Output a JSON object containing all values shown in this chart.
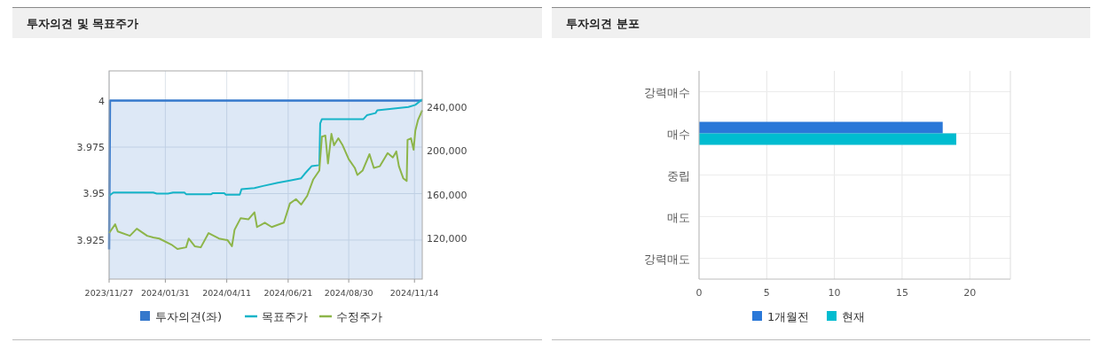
{
  "chart_data": [
    {
      "type": "line",
      "title": "투자의견 및 목표주가",
      "xlim": [
        "2023-11-27",
        "2024-11-23"
      ],
      "xticks": [
        {
          "value": "2023-11-27",
          "label": "2023/11/27"
        },
        {
          "value": "2024-01-31",
          "label": "2024/01/31"
        },
        {
          "value": "2024-04-11",
          "label": "2024/04/11"
        },
        {
          "value": "2024-06-21",
          "label": "2024/06/21"
        },
        {
          "value": "2024-08-30",
          "label": "2024/08/30"
        },
        {
          "value": "2024-11-14",
          "label": "2024/11/14"
        }
      ],
      "ylim": [
        3.904,
        4.016
      ],
      "yticks": [
        3.925,
        3.95,
        3.975,
        4
      ],
      "y2lim": [
        83000,
        273000
      ],
      "y2ticks": [
        {
          "value": 120000,
          "label": "120,000"
        },
        {
          "value": 160000,
          "label": "160,000"
        },
        {
          "value": 200000,
          "label": "200,000"
        },
        {
          "value": 240000,
          "label": "240,000"
        }
      ],
      "grid": true,
      "legend": "bottom",
      "series": [
        {
          "name": "투자의견(좌)",
          "type": "area",
          "color": "#3578cc",
          "x": [
            "2023-11-27",
            "2023-11-28",
            "2024-11-23"
          ],
          "values": [
            3.92,
            4,
            4
          ]
        },
        {
          "name": "목표주가",
          "type": "line",
          "axis": "y2",
          "color": "#17b4c8",
          "x": [
            "2023-11-27",
            "2023-12-02",
            "2024-01-17",
            "2024-01-21",
            "2024-02-03",
            "2024-02-09",
            "2024-02-22",
            "2024-02-24",
            "2024-03-24",
            "2024-03-26",
            "2024-04-08",
            "2024-04-10",
            "2024-04-26",
            "2024-04-28",
            "2024-05-13",
            "2024-05-23",
            "2024-06-09",
            "2024-06-23",
            "2024-07-06",
            "2024-07-10",
            "2024-07-18",
            "2024-07-27",
            "2024-07-28",
            "2024-07-30",
            "2024-09-16",
            "2024-09-20",
            "2024-09-30",
            "2024-10-02",
            "2024-11-07",
            "2024-11-15",
            "2024-11-23"
          ],
          "values": [
            159000,
            162000,
            162000,
            161000,
            161000,
            162000,
            162000,
            160500,
            160500,
            161500,
            161500,
            160000,
            160000,
            165000,
            166000,
            168000,
            171000,
            173000,
            175000,
            179000,
            186000,
            187000,
            225000,
            229000,
            229000,
            232500,
            234500,
            237000,
            240000,
            242000,
            247000
          ]
        },
        {
          "name": "수정주가",
          "type": "line",
          "axis": "y2",
          "color": "#8db54a",
          "x": [
            "2023-11-27",
            "2023-12-04",
            "2023-12-07",
            "2023-12-21",
            "2023-12-29",
            "2024-01-10",
            "2024-01-17",
            "2024-01-24",
            "2024-02-07",
            "2024-02-14",
            "2024-02-24",
            "2024-02-27",
            "2024-03-05",
            "2024-03-12",
            "2024-03-21",
            "2024-04-02",
            "2024-04-12",
            "2024-04-17",
            "2024-04-20",
            "2024-04-27",
            "2024-05-06",
            "2024-05-13",
            "2024-05-16",
            "2024-05-25",
            "2024-06-02",
            "2024-06-16",
            "2024-06-23",
            "2024-06-30",
            "2024-07-06",
            "2024-07-13",
            "2024-07-20",
            "2024-07-27",
            "2024-07-30",
            "2024-08-03",
            "2024-08-06",
            "2024-08-10",
            "2024-08-13",
            "2024-08-18",
            "2024-08-23",
            "2024-08-30",
            "2024-09-06",
            "2024-09-09",
            "2024-09-15",
            "2024-09-23",
            "2024-09-28",
            "2024-10-05",
            "2024-10-14",
            "2024-10-20",
            "2024-10-24",
            "2024-10-27",
            "2024-11-01",
            "2024-11-05",
            "2024-11-06",
            "2024-11-10",
            "2024-11-13",
            "2024-11-15",
            "2024-11-18",
            "2024-11-23"
          ],
          "values": [
            125000,
            133000,
            126500,
            122500,
            129000,
            122500,
            121000,
            120000,
            114500,
            110500,
            112000,
            120000,
            113000,
            112000,
            125000,
            120000,
            118500,
            113000,
            128000,
            138500,
            137500,
            144000,
            130500,
            134500,
            130500,
            134500,
            152000,
            156000,
            151000,
            159000,
            174000,
            182000,
            213000,
            214000,
            188500,
            215500,
            205000,
            211500,
            205000,
            192500,
            184500,
            178000,
            182000,
            197000,
            184500,
            186000,
            198000,
            194000,
            199500,
            186000,
            175000,
            172500,
            210000,
            211500,
            201000,
            218500,
            228000,
            237000
          ]
        }
      ]
    },
    {
      "type": "bar",
      "orientation": "horizontal",
      "title": "투자의견 분포",
      "categories": [
        "강력매수",
        "매수",
        "중립",
        "매도",
        "강력매도"
      ],
      "xlim": [
        0,
        23
      ],
      "xticks": [
        0,
        5,
        10,
        15,
        20
      ],
      "grid": true,
      "legend": "bottom",
      "series": [
        {
          "name": "1개월전",
          "color": "#2a78d8",
          "values": [
            0,
            18,
            0,
            0,
            0
          ]
        },
        {
          "name": "현재",
          "color": "#00bcd0",
          "values": [
            0,
            19,
            0,
            0,
            0
          ]
        }
      ]
    }
  ]
}
